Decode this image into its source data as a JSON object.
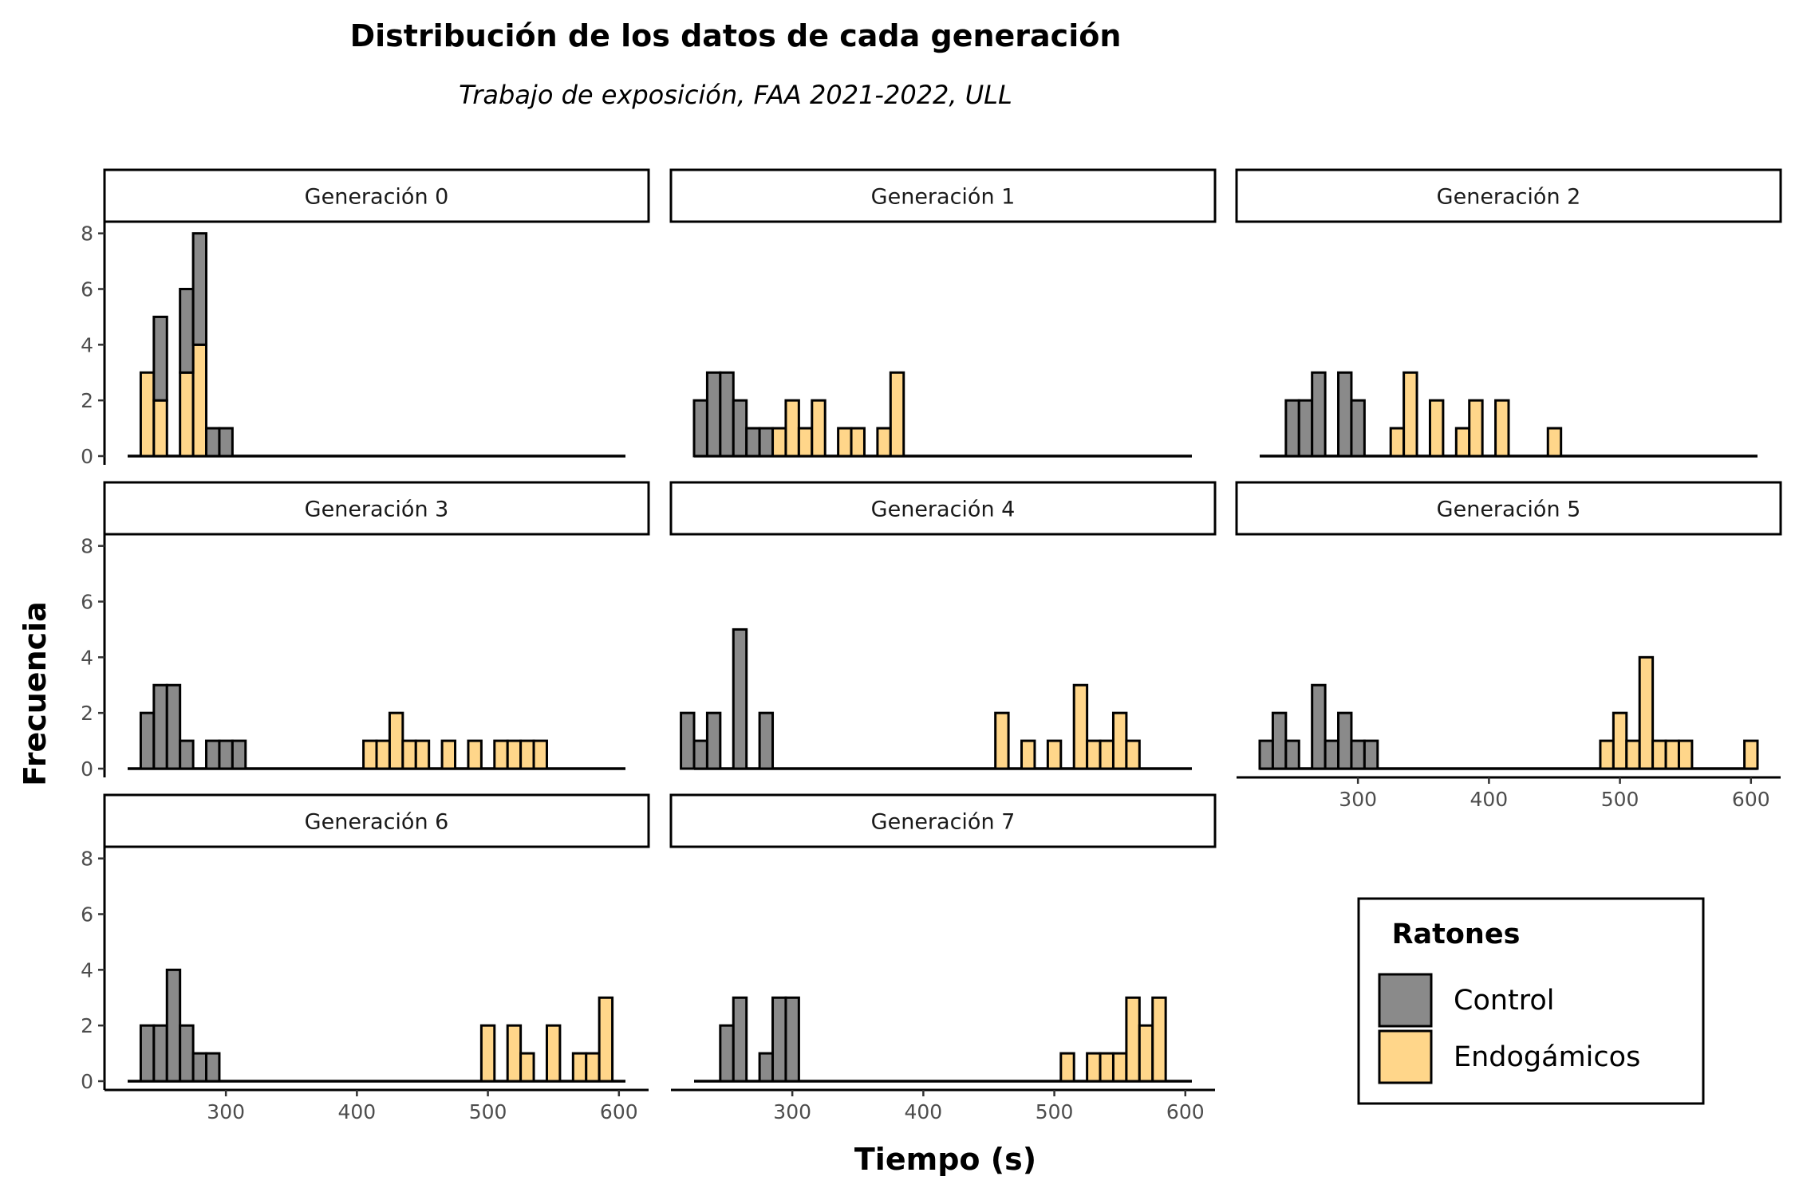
{
  "chart_data": {
    "type": "bar",
    "title": "Distribución de los datos de cada generación",
    "subtitle": "Trabajo de exposición, FAA 2021-2022, ULL",
    "xlabel": "Tiempo (s)",
    "ylabel": "Frecuencia",
    "xlim": [
      225,
      605
    ],
    "ylim": [
      0,
      8
    ],
    "x_ticks": [
      300,
      400,
      500,
      600
    ],
    "y_ticks": [
      0,
      2,
      4,
      6,
      8
    ],
    "bin_width": 10,
    "stacked": true,
    "legend": {
      "title": "Ratones",
      "position": "bottom-right",
      "entries": [
        {
          "label": "Control",
          "color": "#8a8a8a"
        },
        {
          "label": "Endogámicos",
          "color": "#ffd68a"
        }
      ]
    },
    "panels": [
      {
        "label": "Generación 0",
        "control": [
          [
            250,
            3
          ],
          [
            270,
            3
          ],
          [
            280,
            4
          ],
          [
            290,
            1
          ],
          [
            300,
            1
          ]
        ],
        "endogamicos": [
          [
            240,
            3
          ],
          [
            250,
            2
          ],
          [
            270,
            3
          ],
          [
            280,
            4
          ]
        ]
      },
      {
        "label": "Generación 1",
        "control": [
          [
            230,
            2
          ],
          [
            240,
            3
          ],
          [
            250,
            3
          ],
          [
            260,
            2
          ],
          [
            270,
            1
          ],
          [
            280,
            1
          ]
        ],
        "endogamicos": [
          [
            290,
            1
          ],
          [
            300,
            2
          ],
          [
            310,
            1
          ],
          [
            320,
            2
          ],
          [
            340,
            1
          ],
          [
            350,
            1
          ],
          [
            370,
            1
          ],
          [
            380,
            3
          ]
        ]
      },
      {
        "label": "Generación 2",
        "control": [
          [
            250,
            2
          ],
          [
            260,
            2
          ],
          [
            270,
            3
          ],
          [
            290,
            3
          ],
          [
            300,
            2
          ]
        ],
        "endogamicos": [
          [
            330,
            1
          ],
          [
            340,
            3
          ],
          [
            360,
            2
          ],
          [
            380,
            1
          ],
          [
            390,
            2
          ],
          [
            410,
            2
          ],
          [
            450,
            1
          ]
        ]
      },
      {
        "label": "Generación 3",
        "control": [
          [
            240,
            2
          ],
          [
            250,
            3
          ],
          [
            260,
            3
          ],
          [
            270,
            1
          ],
          [
            290,
            1
          ],
          [
            300,
            1
          ],
          [
            310,
            1
          ]
        ],
        "endogamicos": [
          [
            410,
            1
          ],
          [
            420,
            1
          ],
          [
            430,
            2
          ],
          [
            440,
            1
          ],
          [
            450,
            1
          ],
          [
            470,
            1
          ],
          [
            490,
            1
          ],
          [
            510,
            1
          ],
          [
            520,
            1
          ],
          [
            530,
            1
          ],
          [
            540,
            1
          ]
        ]
      },
      {
        "label": "Generación 4",
        "control": [
          [
            220,
            2
          ],
          [
            230,
            1
          ],
          [
            240,
            2
          ],
          [
            260,
            5
          ],
          [
            280,
            2
          ]
        ],
        "endogamicos": [
          [
            460,
            2
          ],
          [
            480,
            1
          ],
          [
            500,
            1
          ],
          [
            520,
            3
          ],
          [
            530,
            1
          ],
          [
            540,
            1
          ],
          [
            550,
            2
          ],
          [
            560,
            1
          ]
        ]
      },
      {
        "label": "Generación 5",
        "control": [
          [
            230,
            1
          ],
          [
            240,
            2
          ],
          [
            250,
            1
          ],
          [
            270,
            3
          ],
          [
            280,
            1
          ],
          [
            290,
            2
          ],
          [
            300,
            1
          ],
          [
            310,
            1
          ]
        ],
        "endogamicos": [
          [
            490,
            1
          ],
          [
            500,
            2
          ],
          [
            510,
            1
          ],
          [
            520,
            4
          ],
          [
            530,
            1
          ],
          [
            540,
            1
          ],
          [
            550,
            1
          ],
          [
            600,
            1
          ]
        ]
      },
      {
        "label": "Generación 6",
        "control": [
          [
            240,
            2
          ],
          [
            250,
            2
          ],
          [
            260,
            4
          ],
          [
            270,
            2
          ],
          [
            280,
            1
          ],
          [
            290,
            1
          ]
        ],
        "endogamicos": [
          [
            500,
            2
          ],
          [
            520,
            2
          ],
          [
            530,
            1
          ],
          [
            550,
            2
          ],
          [
            570,
            1
          ],
          [
            580,
            1
          ],
          [
            590,
            3
          ]
        ]
      },
      {
        "label": "Generación 7",
        "control": [
          [
            250,
            2
          ],
          [
            260,
            3
          ],
          [
            280,
            1
          ],
          [
            290,
            3
          ],
          [
            300,
            3
          ]
        ],
        "endogamicos": [
          [
            510,
            1
          ],
          [
            530,
            1
          ],
          [
            540,
            1
          ],
          [
            550,
            1
          ],
          [
            560,
            3
          ],
          [
            570,
            2
          ],
          [
            580,
            3
          ]
        ]
      }
    ]
  }
}
